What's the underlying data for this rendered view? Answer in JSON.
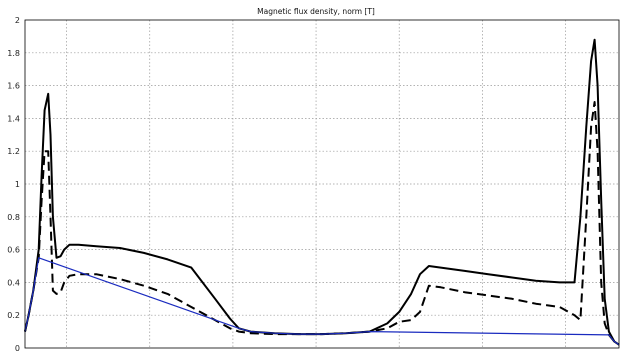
{
  "chart_data": {
    "type": "line",
    "title": "Magnetic flux density, norm [T]",
    "xlabel": "",
    "ylabel": "",
    "xlim": [
      0,
      100
    ],
    "ylim": [
      0,
      2
    ],
    "yticks": [
      0,
      0.2,
      0.4,
      0.6,
      0.8,
      1,
      1.2,
      1.4,
      1.6,
      1.8,
      2
    ],
    "ytick_labels": [
      "0",
      "0.2",
      "0.4",
      "0.6",
      "0.8",
      "1",
      "1.2",
      "1.4",
      "1.6",
      "1.8",
      "2"
    ],
    "xticks": [
      7,
      21,
      35,
      49,
      63,
      77,
      91
    ],
    "grid": true,
    "legend": "none",
    "series": [
      {
        "style": "solid",
        "color": "#000000",
        "x": [
          0,
          0.6,
          1.4,
          2.3,
          2.8,
          3.3,
          3.9,
          4.3,
          4.7,
          5.3,
          6.0,
          6.6,
          7.5,
          9,
          12,
          16,
          20,
          24,
          28,
          32,
          34.5,
          36,
          38,
          42,
          46,
          50,
          54,
          58,
          61,
          63,
          65,
          66.5,
          68,
          70,
          74,
          78,
          82,
          86,
          90,
          92.5,
          93.5,
          94.5,
          95.3,
          95.9,
          96.4,
          97.0,
          97.6,
          98.3,
          99.2,
          100
        ],
        "y": [
          0.1,
          0.2,
          0.35,
          0.6,
          1.05,
          1.45,
          1.55,
          1.3,
          0.8,
          0.55,
          0.56,
          0.6,
          0.63,
          0.63,
          0.62,
          0.61,
          0.58,
          0.54,
          0.49,
          0.3,
          0.18,
          0.12,
          0.1,
          0.09,
          0.085,
          0.085,
          0.09,
          0.1,
          0.15,
          0.22,
          0.33,
          0.45,
          0.5,
          0.49,
          0.47,
          0.45,
          0.43,
          0.41,
          0.4,
          0.4,
          0.8,
          1.35,
          1.75,
          1.88,
          1.6,
          0.9,
          0.3,
          0.1,
          0.04,
          0.02
        ]
      },
      {
        "style": "dashed",
        "color": "#000000",
        "x": [
          0,
          0.6,
          1.4,
          2.3,
          2.8,
          3.3,
          3.9,
          4.3,
          4.7,
          5.3,
          6.0,
          6.6,
          7.5,
          9,
          12,
          16,
          20,
          24,
          28,
          32,
          34.5,
          36,
          38,
          42,
          46,
          50,
          54,
          58,
          61,
          63,
          65,
          66.5,
          68,
          70,
          74,
          78,
          82,
          86,
          90,
          92.5,
          93.5,
          94.5,
          95.3,
          95.9,
          96.4,
          97.0,
          97.6,
          98.3,
          99.2,
          100
        ],
        "y": [
          0.1,
          0.2,
          0.35,
          0.55,
          0.9,
          1.2,
          1.2,
          0.8,
          0.35,
          0.33,
          0.34,
          0.4,
          0.44,
          0.45,
          0.45,
          0.42,
          0.38,
          0.33,
          0.25,
          0.17,
          0.12,
          0.1,
          0.09,
          0.085,
          0.085,
          0.085,
          0.09,
          0.1,
          0.12,
          0.16,
          0.17,
          0.22,
          0.38,
          0.37,
          0.34,
          0.32,
          0.3,
          0.27,
          0.25,
          0.2,
          0.17,
          0.8,
          1.35,
          1.5,
          1.2,
          0.4,
          0.15,
          0.08,
          0.04,
          0.02
        ]
      },
      {
        "style": "solid-thin",
        "color": "#1a2bbf",
        "x": [
          0,
          0.6,
          1.4,
          2.3,
          36,
          38,
          42,
          46,
          50,
          54,
          58,
          98.3,
          99.2,
          100
        ],
        "y": [
          0.1,
          0.2,
          0.35,
          0.55,
          0.12,
          0.1,
          0.09,
          0.085,
          0.085,
          0.09,
          0.1,
          0.08,
          0.04,
          0.02
        ]
      }
    ]
  }
}
